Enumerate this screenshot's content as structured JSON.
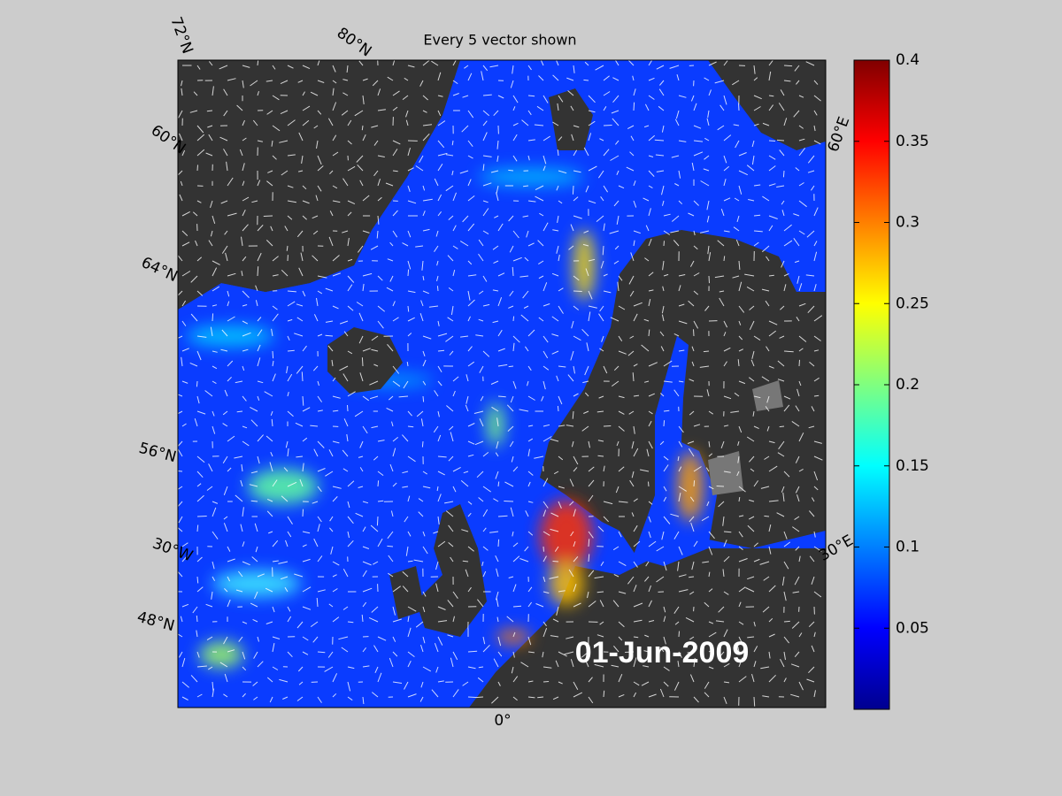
{
  "map": {
    "title": "Every 5 vector shown",
    "date": "01-Jun-2009",
    "latitude_labels": [
      "72°N",
      "80°N",
      "60°N",
      "64°N",
      "56°N",
      "48°N"
    ],
    "longitude_labels": [
      "30°W",
      "0°",
      "30°E",
      "60°E"
    ],
    "colorbar": {
      "lim": [
        0,
        0.4
      ],
      "ticks": [
        0.05,
        0.1,
        0.15,
        0.2,
        0.25,
        0.3,
        0.35,
        0.4
      ]
    }
  }
}
